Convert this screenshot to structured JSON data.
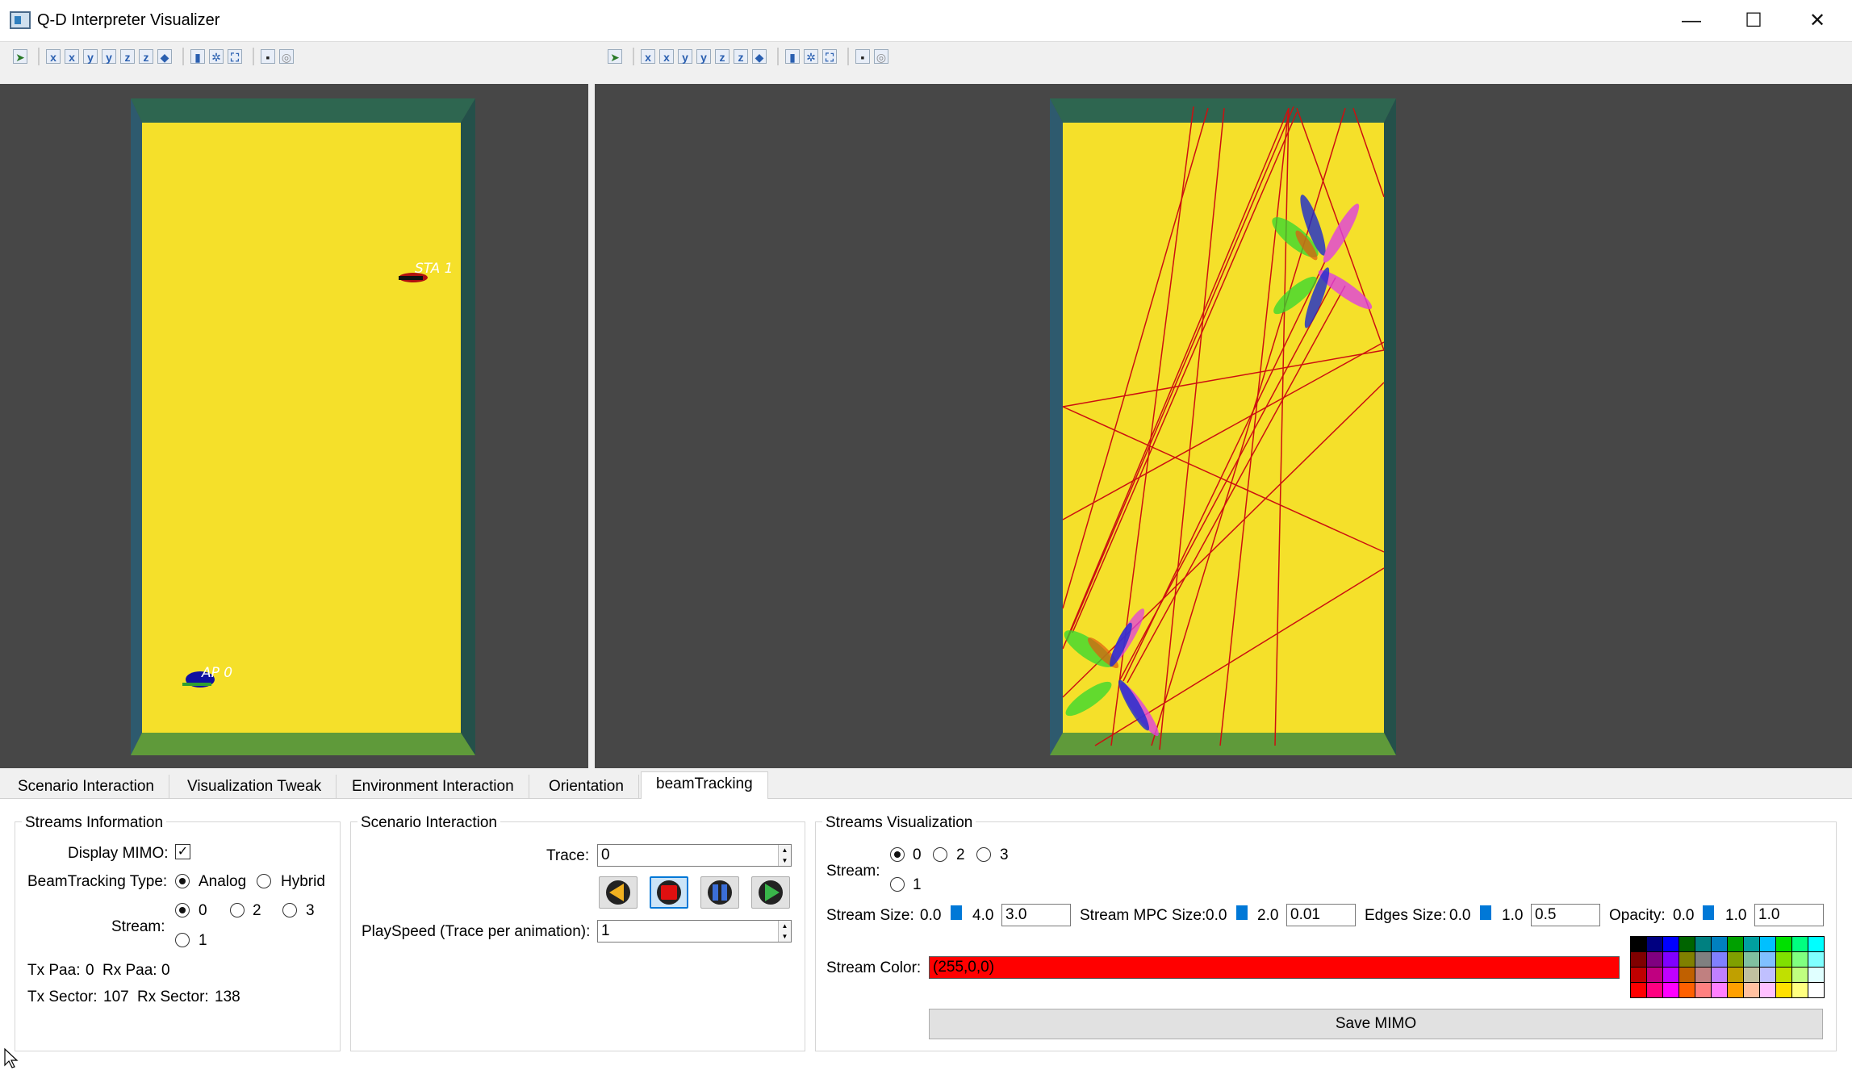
{
  "window": {
    "title": "Q-D Interpreter Visualizer",
    "minimize": "—",
    "maximize": "☐",
    "close": "✕"
  },
  "scene": {
    "sta_label": "STA 1",
    "ap_label": "AP 0"
  },
  "tabs": [
    "Scenario Interaction",
    "Visualization Tweak",
    "Environment Interaction",
    "Orientation",
    "beamTracking"
  ],
  "active_tab": "beamTracking",
  "streams_info": {
    "title": "Streams Information",
    "display_mimo_label": "Display MIMO:",
    "display_mimo_checked": true,
    "beamtracking_type_label": "BeamTracking Type:",
    "type_options": [
      "Analog",
      "Hybrid"
    ],
    "type_selected": "Analog",
    "stream_label": "Stream:",
    "stream_options": [
      "0",
      "2",
      "3",
      "1"
    ],
    "stream_selected": "0",
    "tx_paa_label": "Tx Paa:",
    "tx_paa": "0",
    "rx_paa_label": "Rx Paa:",
    "rx_paa": "0",
    "tx_sector_label": "Tx Sector:",
    "tx_sector": "107",
    "rx_sector_label": "Rx Sector:",
    "rx_sector": "138"
  },
  "scenario": {
    "title": "Scenario Interaction",
    "trace_label": "Trace:",
    "trace_value": "0",
    "playspeed_label": "PlaySpeed (Trace per animation):",
    "playspeed_value": "1"
  },
  "streams_vis": {
    "title": "Streams Visualization",
    "stream_label": "Stream:",
    "stream_options": [
      "0",
      "2",
      "3",
      "1"
    ],
    "stream_selected": "0",
    "size_label": "Stream Size:",
    "size_min": "0.0",
    "size_max": "4.0",
    "size_value": "3.0",
    "mpc_label": "Stream MPC Size:",
    "mpc_min": "0.0",
    "mpc_max": "2.0",
    "mpc_value": "0.01",
    "edges_label": "Edges Size:",
    "edges_min": "0.0",
    "edges_max": "1.0",
    "edges_value": "0.5",
    "opacity_label": "Opacity:",
    "opacity_min": "0.0",
    "opacity_max": "1.0",
    "opacity_value": "1.0",
    "color_label": "Stream Color:",
    "color_value": "(255,0,0)",
    "color_hex": "#ff0000",
    "save_label": "Save MIMO"
  },
  "colors": {
    "floor": "#f5e02a",
    "wall_top": "#2e6650",
    "wall_side": "#2e5a6e",
    "wall_bottom": "#5f9a3a",
    "viewport_bg": "#474747"
  }
}
